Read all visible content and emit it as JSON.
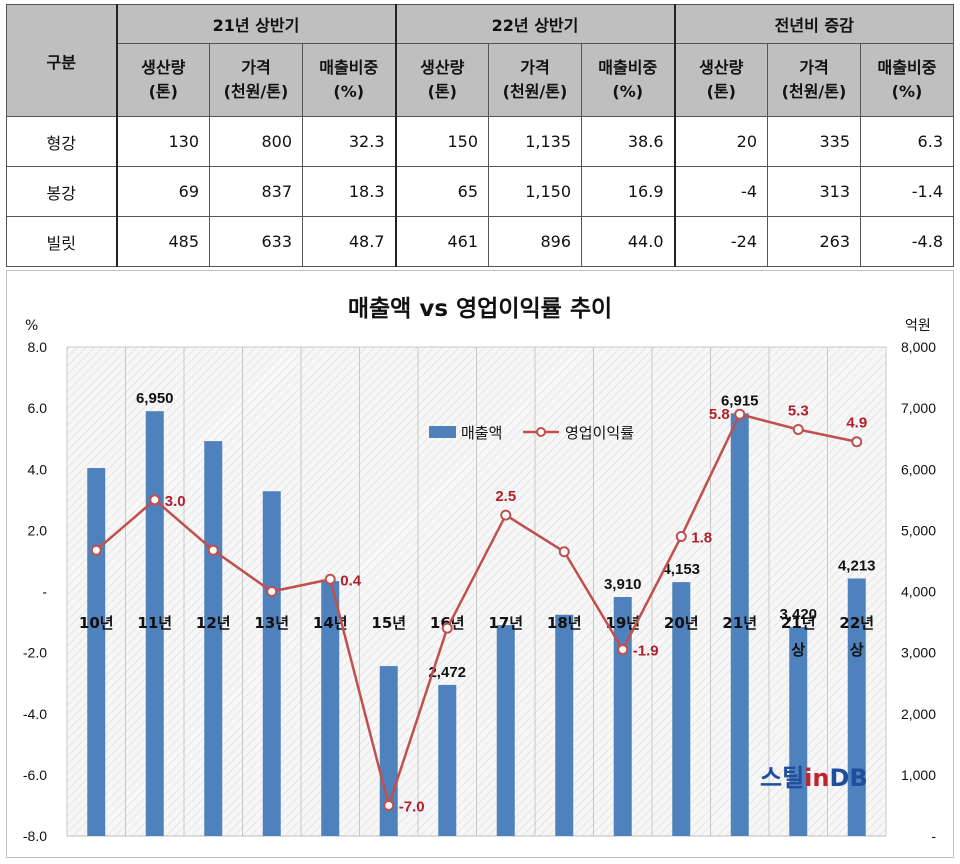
{
  "table": {
    "category_header": "구분",
    "groups": [
      "21년 상반기",
      "22년 상반기",
      "전년비 증감"
    ],
    "sub_headers": [
      {
        "l1": "생산량",
        "l2": "(톤)"
      },
      {
        "l1": "가격",
        "l2": "(천원/톤)"
      },
      {
        "l1": "매출비중",
        "l2": "(%)"
      }
    ],
    "rows": [
      {
        "name": "형강",
        "cells": [
          "130",
          "800",
          "32.3",
          "150",
          "1,135",
          "38.6",
          "20",
          "335",
          "6.3"
        ]
      },
      {
        "name": "봉강",
        "cells": [
          "69",
          "837",
          "18.3",
          "65",
          "1,150",
          "16.9",
          "-4",
          "313",
          "-1.4"
        ]
      },
      {
        "name": "빌릿",
        "cells": [
          "485",
          "633",
          "48.7",
          "461",
          "896",
          "44.0",
          "-24",
          "263",
          "-4.8"
        ]
      }
    ]
  },
  "chart_data": {
    "type": "bar",
    "title": "매출액 vs 영업이익률 추이",
    "left_axis_unit": "%",
    "right_axis_unit": "억원",
    "categories": [
      [
        "10년"
      ],
      [
        "11년"
      ],
      [
        "12년"
      ],
      [
        "13년"
      ],
      [
        "14년"
      ],
      [
        "15년"
      ],
      [
        "16년"
      ],
      [
        "17년"
      ],
      [
        "18년"
      ],
      [
        "19년"
      ],
      [
        "20년"
      ],
      [
        "21년"
      ],
      [
        "21년",
        "상"
      ],
      [
        "22년",
        "상"
      ]
    ],
    "left_axis": {
      "min": -8,
      "max": 8,
      "step": 2,
      "tick_labels": [
        "8.0",
        "6.0",
        "4.0",
        "2.0",
        "-",
        "-2.0",
        "-4.0",
        "-6.0",
        "-8.0"
      ]
    },
    "right_axis": {
      "min": 0,
      "max": 8000,
      "step": 1000,
      "tick_labels": [
        "8,000",
        "7,000",
        "6,000",
        "5,000",
        "4,000",
        "3,000",
        "2,000",
        "1,000",
        "-"
      ]
    },
    "series": [
      {
        "name": "매출액",
        "kind": "bar",
        "axis": "right",
        "color": "#4f81bd",
        "values": [
          6020,
          6950,
          6460,
          5640,
          4170,
          2780,
          2472,
          3450,
          3620,
          3910,
          4153,
          6915,
          3420,
          4213
        ],
        "labels": [
          "",
          "6,950",
          "",
          "",
          "",
          "",
          "2,472",
          "",
          "",
          "3,910",
          "4,153",
          "6,915",
          "3,420",
          "4,213"
        ]
      },
      {
        "name": "영업이익률",
        "kind": "line",
        "axis": "left",
        "color": "#c0504d",
        "values": [
          1.35,
          3.0,
          1.35,
          0.0,
          0.4,
          -7.0,
          -1.2,
          2.5,
          1.3,
          -1.9,
          1.8,
          5.8,
          5.3,
          4.9
        ],
        "labels": [
          "",
          "3.0",
          "",
          "",
          "0.4",
          "-7.0",
          "",
          "2.5",
          "",
          "-1.9",
          "1.8",
          "5.8",
          "5.3",
          "4.9"
        ]
      }
    ],
    "grid": "vertical",
    "legend": "top-right"
  },
  "logo": {
    "part1": "스틸",
    "part2": "in",
    "part3": "DB"
  }
}
